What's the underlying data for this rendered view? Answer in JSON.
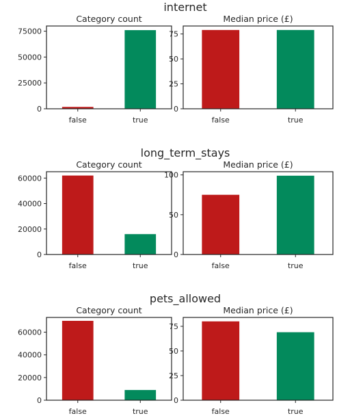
{
  "palette": {
    "false": "#be1a1a",
    "true": "#038a5c",
    "axis": "#262626",
    "text": "#262626"
  },
  "chart_data": [
    {
      "type": "bar",
      "group_title": "internet",
      "title": "Category count",
      "categories": [
        "false",
        "true"
      ],
      "values": [
        1800,
        76000
      ],
      "ylim": [
        0,
        80000
      ],
      "yticks": [
        0,
        25000,
        50000,
        75000
      ],
      "ytick_labels": [
        "0",
        "25000",
        "50000",
        "75000"
      ],
      "grid": false
    },
    {
      "type": "bar",
      "group_title": "internet",
      "title": "Median price (£)",
      "categories": [
        "false",
        "true"
      ],
      "values": [
        79,
        79
      ],
      "ylim": [
        0,
        83
      ],
      "yticks": [
        0,
        25,
        50,
        75
      ],
      "ytick_labels": [
        "0",
        "25",
        "50",
        "75"
      ],
      "grid": false
    },
    {
      "type": "bar",
      "group_title": "long_term_stays",
      "title": "Category count",
      "categories": [
        "false",
        "true"
      ],
      "values": [
        62000,
        16000
      ],
      "ylim": [
        0,
        65000
      ],
      "yticks": [
        0,
        20000,
        40000,
        60000
      ],
      "ytick_labels": [
        "0",
        "20000",
        "40000",
        "60000"
      ],
      "grid": false
    },
    {
      "type": "bar",
      "group_title": "long_term_stays",
      "title": "Median price (£)",
      "categories": [
        "false",
        "true"
      ],
      "values": [
        75,
        99
      ],
      "ylim": [
        0,
        104
      ],
      "yticks": [
        0,
        50,
        100
      ],
      "ytick_labels": [
        "0",
        "50",
        "100"
      ],
      "grid": false
    },
    {
      "type": "bar",
      "group_title": "pets_allowed",
      "title": "Category count",
      "categories": [
        "false",
        "true"
      ],
      "values": [
        70000,
        9000
      ],
      "ylim": [
        0,
        73000
      ],
      "yticks": [
        0,
        20000,
        40000,
        60000
      ],
      "ytick_labels": [
        "0",
        "20000",
        "40000",
        "60000"
      ],
      "grid": false
    },
    {
      "type": "bar",
      "group_title": "pets_allowed",
      "title": "Median price (£)",
      "categories": [
        "false",
        "true"
      ],
      "values": [
        80,
        69
      ],
      "ylim": [
        0,
        84
      ],
      "yticks": [
        0,
        25,
        50,
        75
      ],
      "ytick_labels": [
        "0",
        "25",
        "50",
        "75"
      ],
      "grid": false
    }
  ]
}
